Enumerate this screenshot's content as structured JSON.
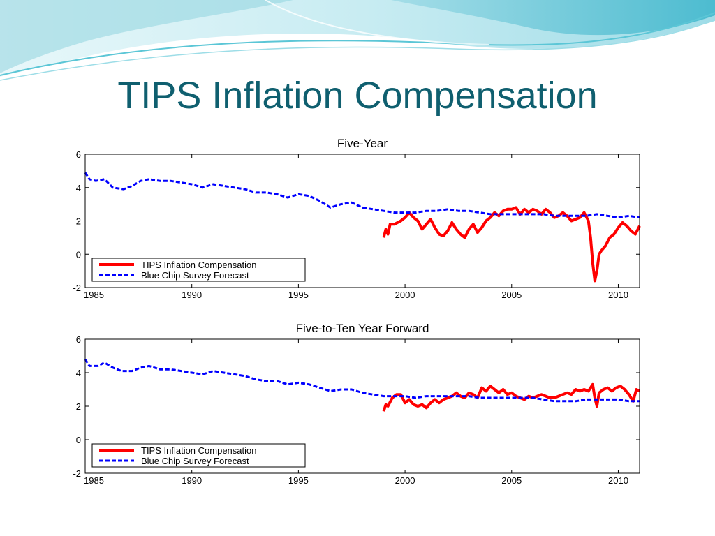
{
  "slide": {
    "title": "TIPS Inflation Compensation",
    "colors": {
      "title": "#0f5f6f",
      "accent_wave": "#5bc6d6"
    }
  },
  "chart_data": [
    {
      "type": "line",
      "title": "Five-Year",
      "xlim": [
        1985,
        2011
      ],
      "ylim": [
        -2,
        6
      ],
      "x_ticks": [
        1985,
        1990,
        1995,
        2000,
        2005,
        2010
      ],
      "y_ticks": [
        -2,
        0,
        2,
        4,
        6
      ],
      "grid": false,
      "legend": {
        "placement": "bottom-left",
        "boxed": true
      },
      "series": [
        {
          "name": "TIPS Inflation Compensation",
          "color": "#ff0000",
          "style": "solid",
          "points": [
            [
              1999.0,
              1.0
            ],
            [
              1999.1,
              1.5
            ],
            [
              1999.2,
              1.2
            ],
            [
              1999.3,
              1.8
            ],
            [
              1999.5,
              1.8
            ],
            [
              1999.8,
              2.0
            ],
            [
              2000.0,
              2.2
            ],
            [
              2000.2,
              2.5
            ],
            [
              2000.4,
              2.2
            ],
            [
              2000.6,
              2.0
            ],
            [
              2000.8,
              1.5
            ],
            [
              2001.0,
              1.8
            ],
            [
              2001.2,
              2.1
            ],
            [
              2001.4,
              1.6
            ],
            [
              2001.6,
              1.2
            ],
            [
              2001.8,
              1.1
            ],
            [
              2002.0,
              1.4
            ],
            [
              2002.2,
              1.9
            ],
            [
              2002.4,
              1.5
            ],
            [
              2002.6,
              1.2
            ],
            [
              2002.8,
              1.0
            ],
            [
              2003.0,
              1.5
            ],
            [
              2003.2,
              1.8
            ],
            [
              2003.4,
              1.3
            ],
            [
              2003.6,
              1.6
            ],
            [
              2003.8,
              2.0
            ],
            [
              2004.0,
              2.2
            ],
            [
              2004.2,
              2.5
            ],
            [
              2004.4,
              2.3
            ],
            [
              2004.6,
              2.6
            ],
            [
              2004.8,
              2.7
            ],
            [
              2005.0,
              2.7
            ],
            [
              2005.2,
              2.8
            ],
            [
              2005.4,
              2.4
            ],
            [
              2005.6,
              2.7
            ],
            [
              2005.8,
              2.5
            ],
            [
              2006.0,
              2.7
            ],
            [
              2006.2,
              2.6
            ],
            [
              2006.4,
              2.4
            ],
            [
              2006.6,
              2.7
            ],
            [
              2006.8,
              2.5
            ],
            [
              2007.0,
              2.2
            ],
            [
              2007.2,
              2.3
            ],
            [
              2007.4,
              2.5
            ],
            [
              2007.6,
              2.3
            ],
            [
              2007.8,
              2.0
            ],
            [
              2008.0,
              2.1
            ],
            [
              2008.2,
              2.2
            ],
            [
              2008.4,
              2.5
            ],
            [
              2008.6,
              2.0
            ],
            [
              2008.7,
              1.0
            ],
            [
              2008.8,
              -0.5
            ],
            [
              2008.9,
              -1.6
            ],
            [
              2009.0,
              -1.0
            ],
            [
              2009.1,
              0.0
            ],
            [
              2009.2,
              0.2
            ],
            [
              2009.4,
              0.5
            ],
            [
              2009.6,
              1.0
            ],
            [
              2009.8,
              1.2
            ],
            [
              2010.0,
              1.6
            ],
            [
              2010.2,
              1.9
            ],
            [
              2010.4,
              1.7
            ],
            [
              2010.6,
              1.4
            ],
            [
              2010.8,
              1.2
            ],
            [
              2011.0,
              1.7
            ]
          ]
        },
        {
          "name": "Blue Chip Survey Forecast",
          "color": "#0000ff",
          "style": "dashed",
          "points": [
            [
              1985.0,
              4.9
            ],
            [
              1985.2,
              4.5
            ],
            [
              1985.5,
              4.4
            ],
            [
              1985.9,
              4.5
            ],
            [
              1986.3,
              4.0
            ],
            [
              1986.8,
              3.9
            ],
            [
              1987.2,
              4.1
            ],
            [
              1987.6,
              4.4
            ],
            [
              1988.0,
              4.5
            ],
            [
              1988.5,
              4.4
            ],
            [
              1989.0,
              4.4
            ],
            [
              1989.5,
              4.3
            ],
            [
              1990.0,
              4.2
            ],
            [
              1990.5,
              4.0
            ],
            [
              1991.0,
              4.2
            ],
            [
              1991.5,
              4.1
            ],
            [
              1992.0,
              4.0
            ],
            [
              1992.5,
              3.9
            ],
            [
              1993.0,
              3.7
            ],
            [
              1993.5,
              3.7
            ],
            [
              1994.0,
              3.6
            ],
            [
              1994.5,
              3.4
            ],
            [
              1995.0,
              3.6
            ],
            [
              1995.5,
              3.5
            ],
            [
              1996.0,
              3.2
            ],
            [
              1996.5,
              2.8
            ],
            [
              1997.0,
              3.0
            ],
            [
              1997.5,
              3.1
            ],
            [
              1998.0,
              2.8
            ],
            [
              1998.5,
              2.7
            ],
            [
              1999.0,
              2.6
            ],
            [
              1999.5,
              2.5
            ],
            [
              2000.0,
              2.5
            ],
            [
              2000.5,
              2.5
            ],
            [
              2001.0,
              2.6
            ],
            [
              2001.5,
              2.6
            ],
            [
              2002.0,
              2.7
            ],
            [
              2002.5,
              2.6
            ],
            [
              2003.0,
              2.6
            ],
            [
              2003.5,
              2.5
            ],
            [
              2004.0,
              2.4
            ],
            [
              2004.5,
              2.4
            ],
            [
              2005.0,
              2.4
            ],
            [
              2005.5,
              2.4
            ],
            [
              2006.0,
              2.4
            ],
            [
              2006.5,
              2.4
            ],
            [
              2007.0,
              2.3
            ],
            [
              2007.5,
              2.3
            ],
            [
              2008.0,
              2.3
            ],
            [
              2008.5,
              2.3
            ],
            [
              2009.0,
              2.4
            ],
            [
              2009.5,
              2.3
            ],
            [
              2010.0,
              2.2
            ],
            [
              2010.5,
              2.3
            ],
            [
              2011.0,
              2.2
            ]
          ]
        }
      ]
    },
    {
      "type": "line",
      "title": "Five-to-Ten Year Forward",
      "xlim": [
        1985,
        2011
      ],
      "ylim": [
        -2,
        6
      ],
      "x_ticks": [
        1985,
        1990,
        1995,
        2000,
        2005,
        2010
      ],
      "y_ticks": [
        -2,
        0,
        2,
        4,
        6
      ],
      "grid": false,
      "legend": {
        "placement": "bottom-left",
        "boxed": true
      },
      "series": [
        {
          "name": "TIPS Inflation Compensation",
          "color": "#ff0000",
          "style": "solid",
          "points": [
            [
              1999.0,
              1.7
            ],
            [
              1999.1,
              2.1
            ],
            [
              1999.2,
              2.0
            ],
            [
              1999.4,
              2.5
            ],
            [
              1999.6,
              2.7
            ],
            [
              1999.8,
              2.7
            ],
            [
              2000.0,
              2.2
            ],
            [
              2000.2,
              2.4
            ],
            [
              2000.4,
              2.1
            ],
            [
              2000.6,
              2.0
            ],
            [
              2000.8,
              2.1
            ],
            [
              2001.0,
              1.9
            ],
            [
              2001.2,
              2.2
            ],
            [
              2001.4,
              2.4
            ],
            [
              2001.6,
              2.2
            ],
            [
              2001.8,
              2.4
            ],
            [
              2002.0,
              2.5
            ],
            [
              2002.2,
              2.6
            ],
            [
              2002.4,
              2.8
            ],
            [
              2002.6,
              2.6
            ],
            [
              2002.8,
              2.5
            ],
            [
              2003.0,
              2.8
            ],
            [
              2003.2,
              2.7
            ],
            [
              2003.4,
              2.5
            ],
            [
              2003.6,
              3.1
            ],
            [
              2003.8,
              2.9
            ],
            [
              2004.0,
              3.2
            ],
            [
              2004.2,
              3.0
            ],
            [
              2004.4,
              2.8
            ],
            [
              2004.6,
              3.0
            ],
            [
              2004.8,
              2.7
            ],
            [
              2005.0,
              2.8
            ],
            [
              2005.2,
              2.6
            ],
            [
              2005.4,
              2.5
            ],
            [
              2005.6,
              2.4
            ],
            [
              2005.8,
              2.6
            ],
            [
              2006.0,
              2.5
            ],
            [
              2006.2,
              2.6
            ],
            [
              2006.4,
              2.7
            ],
            [
              2006.6,
              2.6
            ],
            [
              2006.8,
              2.5
            ],
            [
              2007.0,
              2.5
            ],
            [
              2007.2,
              2.6
            ],
            [
              2007.4,
              2.7
            ],
            [
              2007.6,
              2.8
            ],
            [
              2007.8,
              2.7
            ],
            [
              2008.0,
              3.0
            ],
            [
              2008.2,
              2.9
            ],
            [
              2008.4,
              3.0
            ],
            [
              2008.6,
              2.9
            ],
            [
              2008.8,
              3.3
            ],
            [
              2008.9,
              2.5
            ],
            [
              2009.0,
              2.0
            ],
            [
              2009.1,
              2.8
            ],
            [
              2009.3,
              3.0
            ],
            [
              2009.5,
              3.1
            ],
            [
              2009.7,
              2.9
            ],
            [
              2009.9,
              3.1
            ],
            [
              2010.1,
              3.2
            ],
            [
              2010.3,
              3.0
            ],
            [
              2010.5,
              2.7
            ],
            [
              2010.7,
              2.3
            ],
            [
              2010.85,
              3.0
            ],
            [
              2011.0,
              2.9
            ]
          ]
        },
        {
          "name": "Blue Chip Survey Forecast",
          "color": "#0000ff",
          "style": "dashed",
          "points": [
            [
              1985.0,
              4.8
            ],
            [
              1985.2,
              4.4
            ],
            [
              1985.6,
              4.4
            ],
            [
              1985.9,
              4.6
            ],
            [
              1986.3,
              4.3
            ],
            [
              1986.7,
              4.1
            ],
            [
              1987.2,
              4.1
            ],
            [
              1987.6,
              4.3
            ],
            [
              1988.0,
              4.4
            ],
            [
              1988.5,
              4.2
            ],
            [
              1989.0,
              4.2
            ],
            [
              1989.5,
              4.1
            ],
            [
              1990.0,
              4.0
            ],
            [
              1990.5,
              3.9
            ],
            [
              1991.0,
              4.1
            ],
            [
              1991.5,
              4.0
            ],
            [
              1992.0,
              3.9
            ],
            [
              1992.5,
              3.8
            ],
            [
              1993.0,
              3.6
            ],
            [
              1993.5,
              3.5
            ],
            [
              1994.0,
              3.5
            ],
            [
              1994.5,
              3.3
            ],
            [
              1995.0,
              3.4
            ],
            [
              1995.5,
              3.3
            ],
            [
              1996.0,
              3.1
            ],
            [
              1996.5,
              2.9
            ],
            [
              1997.0,
              3.0
            ],
            [
              1997.5,
              3.0
            ],
            [
              1998.0,
              2.8
            ],
            [
              1998.5,
              2.7
            ],
            [
              1999.0,
              2.6
            ],
            [
              1999.5,
              2.6
            ],
            [
              2000.0,
              2.6
            ],
            [
              2000.5,
              2.5
            ],
            [
              2001.0,
              2.6
            ],
            [
              2001.5,
              2.6
            ],
            [
              2002.0,
              2.6
            ],
            [
              2002.5,
              2.6
            ],
            [
              2003.0,
              2.6
            ],
            [
              2003.5,
              2.5
            ],
            [
              2004.0,
              2.5
            ],
            [
              2004.5,
              2.5
            ],
            [
              2005.0,
              2.5
            ],
            [
              2005.5,
              2.5
            ],
            [
              2006.0,
              2.5
            ],
            [
              2006.5,
              2.4
            ],
            [
              2007.0,
              2.3
            ],
            [
              2007.5,
              2.3
            ],
            [
              2008.0,
              2.3
            ],
            [
              2008.5,
              2.4
            ],
            [
              2009.0,
              2.4
            ],
            [
              2009.5,
              2.4
            ],
            [
              2010.0,
              2.4
            ],
            [
              2010.5,
              2.3
            ],
            [
              2011.0,
              2.3
            ]
          ]
        }
      ]
    }
  ]
}
